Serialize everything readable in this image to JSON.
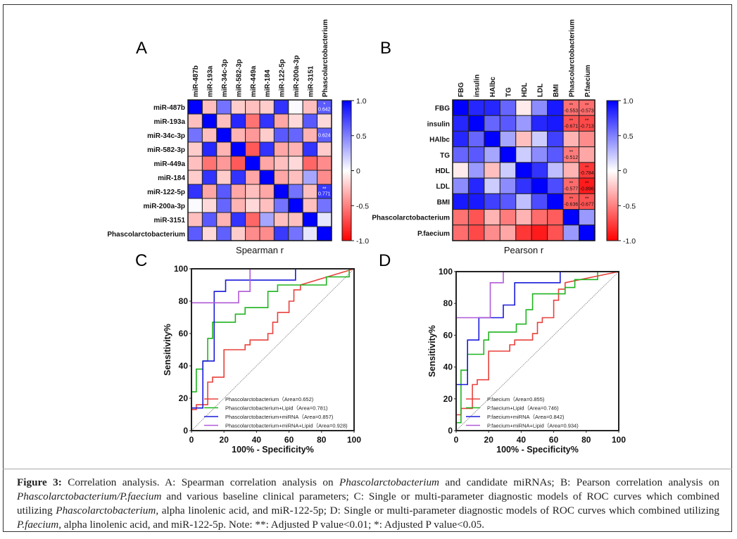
{
  "panels": {
    "A": {
      "letter": "A"
    },
    "B": {
      "letter": "B"
    },
    "C": {
      "letter": "C"
    },
    "D": {
      "letter": "D"
    }
  },
  "caption": {
    "label": "Figure 3:",
    "parts": [
      {
        "t": " Correlation analysis. A: Spearman correlation analysis on ",
        "i": false
      },
      {
        "t": "Phascolarctobacterium",
        "i": true
      },
      {
        "t": " and candidate miRNAs; B: Pearson correlation analysis on ",
        "i": false
      },
      {
        "t": "Phascolarctobacterium/P.faecium",
        "i": true
      },
      {
        "t": " and various baseline clinical parameters; C: Single or multi-parameter diagnostic models of ROC curves which combined utilizing ",
        "i": false
      },
      {
        "t": "Phascolarctobacterium",
        "i": true
      },
      {
        "t": ", alpha linolenic acid, and miR-122-5p; D: Single or multi-parameter diagnostic models of ROC curves which combined utilizing ",
        "i": false
      },
      {
        "t": "P.faecium",
        "i": true
      },
      {
        "t": ", alpha linolenic acid, and miR-122-5p. Note: **: Adjusted P value<0.01; *: Adjusted P value<0.05.",
        "i": false
      }
    ]
  },
  "chart_data": [
    {
      "id": "A",
      "type": "heatmap",
      "title": "",
      "xlabel": "Spearman r",
      "colorbar": {
        "min": -1.0,
        "max": 1.0,
        "ticks": [
          "1.0",
          "0.5",
          "0",
          "-0.5",
          "-1.0"
        ],
        "tick_values": [
          1,
          0.5,
          0,
          -0.5,
          -1
        ],
        "low_color": "#ff0000",
        "mid_color": "#ffffff",
        "high_color": "#0000ff"
      },
      "columns": [
        "miR-487b",
        "miR-193a",
        "miR-34c-3p",
        "miR-582-3p",
        "miR-449a",
        "miR-184",
        "miR-122-5p",
        "miR-200a-3p",
        "miR-3151",
        "Phascolarctobacterium"
      ],
      "rows": [
        "miR-487b",
        "miR-193a",
        "miR-34c-3p",
        "miR-582-3p",
        "miR-449a",
        "miR-184",
        "miR-122-5p",
        "miR-200a-3p",
        "miR-3151",
        "Phascolarctobacterium"
      ],
      "values": [
        [
          1.0,
          -0.25,
          0.55,
          -0.2,
          -0.25,
          -0.2,
          0.8,
          0.02,
          -0.25,
          0.642
        ],
        [
          -0.25,
          1.0,
          -0.25,
          0.85,
          -0.55,
          0.8,
          -0.35,
          -0.15,
          0.65,
          -0.15
        ],
        [
          0.55,
          -0.25,
          1.0,
          -0.3,
          -0.4,
          -0.2,
          0.65,
          0.6,
          -0.3,
          0.624
        ],
        [
          -0.2,
          0.85,
          -0.3,
          1.0,
          -0.65,
          0.8,
          -0.35,
          -0.3,
          0.8,
          -0.2
        ],
        [
          -0.25,
          -0.55,
          -0.4,
          -0.65,
          1.0,
          -0.35,
          -0.25,
          -0.15,
          -0.6,
          -0.45
        ],
        [
          -0.2,
          0.8,
          -0.2,
          0.8,
          -0.35,
          1.0,
          -0.35,
          -0.25,
          0.35,
          -0.45
        ],
        [
          0.8,
          -0.35,
          0.65,
          -0.35,
          -0.25,
          -0.35,
          1.0,
          0.55,
          -0.25,
          0.771
        ],
        [
          0.02,
          -0.15,
          0.6,
          -0.3,
          -0.15,
          -0.25,
          0.55,
          1.0,
          -0.25,
          0.55
        ],
        [
          -0.25,
          0.65,
          -0.3,
          0.8,
          -0.6,
          0.35,
          -0.25,
          -0.25,
          1.0,
          0.1
        ],
        [
          0.642,
          -0.15,
          0.624,
          -0.2,
          -0.45,
          -0.45,
          0.771,
          0.55,
          0.1,
          1.0
        ]
      ],
      "annotations": [
        {
          "row": 0,
          "col": 9,
          "sig": "*",
          "value": "0.642"
        },
        {
          "row": 2,
          "col": 9,
          "sig": "",
          "value": "0.624"
        },
        {
          "row": 6,
          "col": 9,
          "sig": "**",
          "value": "0.771"
        }
      ]
    },
    {
      "id": "B",
      "type": "heatmap",
      "title": "",
      "xlabel": "Pearson r",
      "colorbar": {
        "min": -1.0,
        "max": 1.0,
        "ticks": [
          "1.0",
          "0.5",
          "0",
          "-0.5",
          "-1.0"
        ],
        "tick_values": [
          1,
          0.5,
          0,
          -0.5,
          -1
        ],
        "low_color": "#ff0000",
        "mid_color": "#ffffff",
        "high_color": "#0000ff"
      },
      "columns": [
        "FBG",
        "insulin",
        "HAlbc",
        "TG",
        "HDL",
        "LDL",
        "BMI",
        "Phascolarctobacterium",
        "P.faecium"
      ],
      "rows": [
        "FBG",
        "insulin",
        "HAlbc",
        "TG",
        "HDL",
        "LDL",
        "BMI",
        "Phascolarctobacterium",
        "P.faecium"
      ],
      "values": [
        [
          1.0,
          0.85,
          0.85,
          0.6,
          -0.08,
          0.45,
          0.9,
          -0.553,
          -0.573
        ],
        [
          0.85,
          1.0,
          0.6,
          0.65,
          0.4,
          0.85,
          0.9,
          -0.671,
          -0.713
        ],
        [
          0.85,
          0.6,
          1.0,
          0.35,
          -0.25,
          0.2,
          0.75,
          -0.3,
          -0.45
        ],
        [
          0.6,
          0.65,
          0.35,
          1.0,
          0.2,
          0.45,
          0.65,
          -0.512,
          -0.35
        ],
        [
          -0.08,
          0.4,
          -0.25,
          0.2,
          1.0,
          0.8,
          0.25,
          -0.3,
          -0.784
        ],
        [
          0.45,
          0.85,
          0.2,
          0.45,
          0.8,
          1.0,
          0.7,
          -0.577,
          -0.896
        ],
        [
          0.9,
          0.9,
          0.75,
          0.65,
          0.25,
          0.7,
          1.0,
          -0.636,
          -0.677
        ],
        [
          -0.553,
          -0.671,
          -0.3,
          -0.512,
          -0.3,
          -0.577,
          -0.636,
          1.0,
          0.4
        ],
        [
          -0.573,
          -0.713,
          -0.45,
          -0.35,
          -0.784,
          -0.896,
          -0.677,
          0.4,
          1.0
        ]
      ],
      "annotations": [
        {
          "row": 0,
          "col": 7,
          "sig": "**",
          "value": "-0.553"
        },
        {
          "row": 0,
          "col": 8,
          "sig": "**",
          "value": "-0.573"
        },
        {
          "row": 1,
          "col": 7,
          "sig": "**",
          "value": "-0.671"
        },
        {
          "row": 1,
          "col": 8,
          "sig": "**",
          "value": "-0.713"
        },
        {
          "row": 3,
          "col": 7,
          "sig": "**",
          "value": "-0.512"
        },
        {
          "row": 4,
          "col": 8,
          "sig": "**",
          "value": "-0.784"
        },
        {
          "row": 5,
          "col": 7,
          "sig": "**",
          "value": "-0.577"
        },
        {
          "row": 5,
          "col": 8,
          "sig": "**",
          "value": "-0.896"
        },
        {
          "row": 6,
          "col": 7,
          "sig": "**",
          "value": "-0.636"
        },
        {
          "row": 6,
          "col": 8,
          "sig": "**",
          "value": "-0.677"
        }
      ]
    },
    {
      "id": "C",
      "type": "line",
      "title": "",
      "xlabel": "100% - Specificity%",
      "ylabel": "Sensitivity%",
      "xlim": [
        0,
        100
      ],
      "ylim": [
        0,
        100
      ],
      "xticks": [
        0,
        20,
        40,
        60,
        80,
        100
      ],
      "yticks": [
        0,
        20,
        40,
        60,
        80,
        100
      ],
      "legend_position": "bottom-right",
      "series": [
        {
          "name": "Phascolarctobacterium（Area=0.652)",
          "color": "#e8413c",
          "x": [
            0,
            3,
            3,
            7,
            10,
            10,
            13,
            13,
            20,
            20,
            33,
            33,
            36,
            36,
            47,
            47,
            50,
            50,
            53,
            53,
            60,
            60,
            63,
            63,
            67,
            67,
            100
          ],
          "y": [
            13,
            13,
            16,
            16,
            16,
            30,
            30,
            33,
            33,
            50,
            50,
            53,
            53,
            56,
            56,
            60,
            60,
            67,
            67,
            73,
            73,
            80,
            80,
            87,
            87,
            90,
            100
          ]
        },
        {
          "name": "Phascolarctobacterium+Lipid（Area=0.781)",
          "color": "#1fb41f",
          "x": [
            0,
            0,
            3,
            3,
            7,
            7,
            10,
            10,
            13,
            13,
            27,
            27,
            33,
            33,
            47,
            47,
            53,
            53,
            83,
            83,
            97,
            97,
            100
          ],
          "y": [
            0,
            24,
            24,
            38,
            38,
            43,
            43,
            57,
            57,
            67,
            67,
            72,
            72,
            76,
            76,
            86,
            86,
            90,
            90,
            95,
            95,
            100,
            100
          ]
        },
        {
          "name": "Phascolarctobacterium+miRNA（Area=0.857)",
          "color": "#1a1adc",
          "x": [
            0,
            7,
            7,
            14,
            14,
            21,
            21,
            64,
            64,
            100
          ],
          "y": [
            14,
            14,
            43,
            43,
            86,
            86,
            93,
            93,
            100,
            100
          ]
        },
        {
          "name": "Phascolarctobacterium+miRNA+Lipid（Area=0.928)",
          "color": "#b05ad8",
          "x": [
            0,
            0,
            29,
            29,
            36,
            36,
            100
          ],
          "y": [
            0,
            79,
            79,
            86,
            86,
            100,
            100
          ]
        }
      ]
    },
    {
      "id": "D",
      "type": "line",
      "title": "",
      "xlabel": "100% - Specificity%",
      "ylabel": "Sensitivity%",
      "xlim": [
        0,
        100
      ],
      "ylim": [
        0,
        100
      ],
      "xticks": [
        0,
        20,
        40,
        60,
        80,
        100
      ],
      "yticks": [
        0,
        20,
        40,
        60,
        80,
        100
      ],
      "legend_position": "bottom-right",
      "series": [
        {
          "name": "P.faecium（Area=0.855)",
          "color": "#e8413c",
          "x": [
            0,
            3,
            3,
            10,
            10,
            13,
            13,
            20,
            20,
            33,
            33,
            36,
            36,
            47,
            47,
            50,
            50,
            53,
            53,
            60,
            60,
            63,
            63,
            67,
            67,
            100
          ],
          "y": [
            10,
            10,
            14,
            14,
            29,
            29,
            32,
            32,
            50,
            50,
            54,
            54,
            57,
            57,
            61,
            61,
            68,
            68,
            71,
            71,
            82,
            82,
            89,
            89,
            93,
            100
          ]
        },
        {
          "name": "P.faecium+Lipid（Area=0.746)",
          "color": "#1fb41f",
          "x": [
            0,
            0,
            3,
            3,
            7,
            7,
            17,
            17,
            20,
            20,
            37,
            37,
            43,
            43,
            47,
            47,
            67,
            67,
            73,
            73,
            87,
            87,
            100
          ],
          "y": [
            0,
            5,
            5,
            38,
            38,
            48,
            48,
            57,
            57,
            62,
            62,
            67,
            67,
            76,
            76,
            86,
            86,
            90,
            90,
            95,
            95,
            100,
            100
          ]
        },
        {
          "name": "P.faecium+miRNA（Area=0.842)",
          "color": "#1a1adc",
          "x": [
            0,
            7,
            7,
            14,
            14,
            29,
            29,
            36,
            36,
            64,
            64,
            100
          ],
          "y": [
            29,
            29,
            57,
            57,
            71,
            71,
            79,
            79,
            93,
            93,
            100,
            100
          ]
        },
        {
          "name": "P.faecium+miRNA+Lipid（Area=0.934)",
          "color": "#b05ad8",
          "x": [
            0,
            0,
            21,
            21,
            29,
            29,
            100
          ],
          "y": [
            0,
            71,
            71,
            93,
            93,
            100,
            100
          ]
        }
      ]
    }
  ]
}
